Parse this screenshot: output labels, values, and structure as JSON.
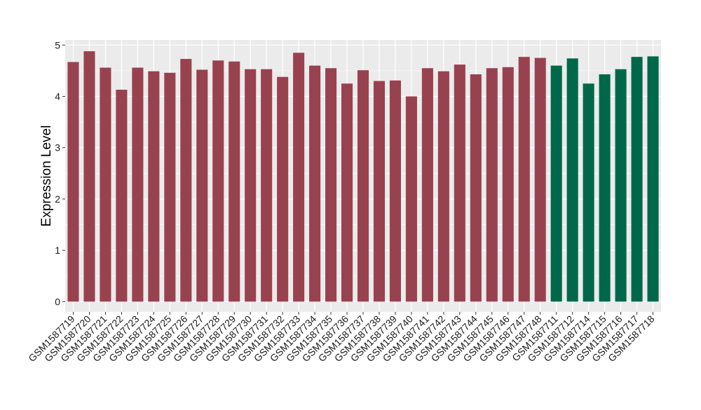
{
  "chart_data": {
    "type": "bar",
    "ylabel": "Expression Level",
    "xlabel": "",
    "ylim": [
      -0.2,
      5.1
    ],
    "yticks": [
      0,
      1,
      2,
      3,
      4,
      5
    ],
    "grid": true,
    "background": "#ebebeb",
    "colors": {
      "group_a": "#99424f",
      "group_b": "#00684a"
    },
    "categories": [
      "GSM1587719",
      "GSM1587720",
      "GSM1587721",
      "GSM1587722",
      "GSM1587723",
      "GSM1587724",
      "GSM1587725",
      "GSM1587726",
      "GSM1587727",
      "GSM1587728",
      "GSM1587729",
      "GSM1587730",
      "GSM1587731",
      "GSM1587732",
      "GSM1587733",
      "GSM1587734",
      "GSM1587735",
      "GSM1587736",
      "GSM1587737",
      "GSM1587738",
      "GSM1587739",
      "GSM1587740",
      "GSM1587741",
      "GSM1587742",
      "GSM1587743",
      "GSM1587744",
      "GSM1587745",
      "GSM1587746",
      "GSM1587747",
      "GSM1587748",
      "GSM1587711",
      "GSM1587712",
      "GSM1587714",
      "GSM1587715",
      "GSM1587716",
      "GSM1587717",
      "GSM1587718"
    ],
    "values": [
      4.67,
      4.88,
      4.56,
      4.13,
      4.56,
      4.49,
      4.46,
      4.73,
      4.52,
      4.7,
      4.68,
      4.53,
      4.53,
      4.38,
      4.85,
      4.6,
      4.55,
      4.25,
      4.51,
      4.3,
      4.31,
      4.0,
      4.55,
      4.49,
      4.62,
      4.43,
      4.55,
      4.57,
      4.77,
      4.75,
      4.6,
      4.74,
      4.25,
      4.43,
      4.53,
      4.77,
      4.78
    ],
    "groups": [
      "group_a",
      "group_a",
      "group_a",
      "group_a",
      "group_a",
      "group_a",
      "group_a",
      "group_a",
      "group_a",
      "group_a",
      "group_a",
      "group_a",
      "group_a",
      "group_a",
      "group_a",
      "group_a",
      "group_a",
      "group_a",
      "group_a",
      "group_a",
      "group_a",
      "group_a",
      "group_a",
      "group_a",
      "group_a",
      "group_a",
      "group_a",
      "group_a",
      "group_a",
      "group_a",
      "group_b",
      "group_b",
      "group_b",
      "group_b",
      "group_b",
      "group_b",
      "group_b"
    ]
  }
}
